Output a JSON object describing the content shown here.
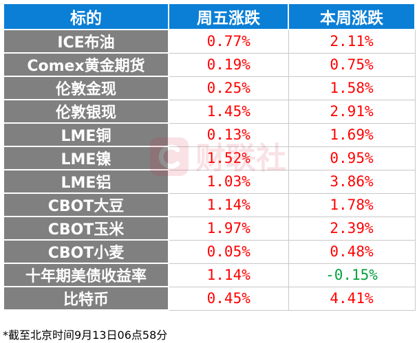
{
  "header": {
    "col_name": "标的",
    "col_friday": "周五涨跌",
    "col_week": "本周涨跌"
  },
  "rows": [
    {
      "name": "ICE布油",
      "friday": "0.77%",
      "week": "2.11%"
    },
    {
      "name": "Comex黄金期货",
      "friday": "0.19%",
      "week": "0.75%"
    },
    {
      "name": "伦敦金现",
      "friday": "0.25%",
      "week": "1.58%"
    },
    {
      "name": "伦敦银现",
      "friday": "1.45%",
      "week": "2.91%"
    },
    {
      "name": "LME铜",
      "friday": "0.13%",
      "week": "1.69%"
    },
    {
      "name": "LME镍",
      "friday": "1.52%",
      "week": "0.95%"
    },
    {
      "name": "LME铝",
      "friday": "1.03%",
      "week": "3.86%"
    },
    {
      "name": "CBOT大豆",
      "friday": "1.14%",
      "week": "1.78%"
    },
    {
      "name": "CBOT玉米",
      "friday": "1.97%",
      "week": "2.39%"
    },
    {
      "name": "CBOT小麦",
      "friday": "0.05%",
      "week": "0.48%"
    },
    {
      "name": "十年期美债收益率",
      "friday": "1.14%",
      "week": "-0.15%"
    },
    {
      "name": "比特币",
      "friday": "0.45%",
      "week": "4.41%"
    }
  ],
  "watermark": "财联社",
  "footnote": "*截至北京时间9月13日06点58分",
  "colors": {
    "header_bg": "#0b7fd6",
    "name_bg": "#808080",
    "positive": "#ff0000",
    "negative": "#00a03c",
    "watermark": "#d4213d"
  }
}
